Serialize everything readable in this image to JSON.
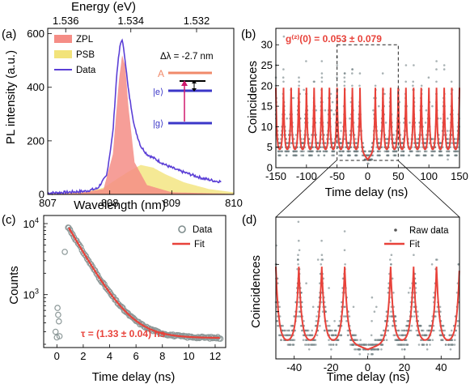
{
  "colors": {
    "fit": "#e8423a",
    "data_line": "#5b3fd6",
    "zpl": "#f58d86",
    "psb": "#f2e37a",
    "raw": "#6f7f82",
    "dot_edge": "#8c9898"
  },
  "chart_data": [
    {
      "id": "a",
      "type": "area",
      "panel_label": "(a)",
      "xlabel": "Wavelength (nm)",
      "ylabel": "PL intensity (a.u.)",
      "top_axis_label": "Energy (eV)",
      "top_ticks": [
        "1.536",
        "1.534",
        "1.532"
      ],
      "top_tick_wavelengths": [
        807.29,
        808.34,
        809.4
      ],
      "xlim": [
        807,
        810
      ],
      "ylim": [
        0,
        620
      ],
      "xticks": [
        807,
        808,
        809,
        810
      ],
      "yticks": [
        0,
        200,
        400,
        600
      ],
      "legend": [
        "ZPL",
        "PSB",
        "Data"
      ],
      "annotation": "Δλ = -2.7 nm",
      "levels": [
        "A",
        "|e⟩",
        "|g⟩"
      ],
      "series": [
        {
          "name": "ZPL",
          "x": [
            807.0,
            807.5,
            807.9,
            808.05,
            808.15,
            808.2,
            808.25,
            808.3,
            808.4,
            808.6,
            809.0,
            810.0
          ],
          "values": [
            2,
            5,
            20,
            150,
            430,
            520,
            480,
            330,
            120,
            35,
            8,
            2
          ]
        },
        {
          "name": "PSB",
          "x": [
            807.0,
            807.6,
            807.9,
            808.1,
            808.3,
            808.5,
            808.7,
            808.9,
            809.2,
            809.6,
            810.0
          ],
          "values": [
            2,
            8,
            25,
            55,
            85,
            110,
            100,
            75,
            45,
            20,
            8
          ]
        },
        {
          "name": "Data",
          "x": [
            807.0,
            807.3,
            807.6,
            807.8,
            807.95,
            808.05,
            808.12,
            808.17,
            808.2,
            808.25,
            808.3,
            808.4,
            808.5,
            808.6,
            808.75,
            808.9,
            809.1,
            809.3,
            809.5,
            809.7,
            809.8
          ],
          "values": [
            5,
            8,
            12,
            22,
            70,
            230,
            470,
            560,
            580,
            500,
            390,
            250,
            180,
            150,
            130,
            110,
            90,
            75,
            60,
            50,
            48
          ]
        }
      ]
    },
    {
      "id": "b",
      "type": "scatter",
      "panel_label": "(b)",
      "xlabel": "Time delay (ns)",
      "ylabel": "Coincidences",
      "annotation": "g⁽²⁾(0) = 0.053 ± 0.079",
      "xlim": [
        -150,
        150
      ],
      "ylim": [
        0,
        34
      ],
      "xticks": [
        -150,
        -100,
        -50,
        0,
        50,
        100,
        150
      ],
      "yticks": [
        0,
        5,
        10,
        15,
        20,
        25,
        30
      ],
      "fit": {
        "period_ns": 12.5,
        "peak": 19.5,
        "baseline": 4,
        "center_dip": 2,
        "dip_halfwidth_ns": 10
      },
      "zoom_window": {
        "x": [
          -50,
          50
        ],
        "y": [
          0,
          30
        ]
      }
    },
    {
      "id": "c",
      "type": "scatter",
      "panel_label": "(c)",
      "xlabel": "Time delay (ns)",
      "ylabel": "Counts",
      "yscale": "log",
      "xlim": [
        -1,
        12.8
      ],
      "ylim": [
        180,
        13000
      ],
      "xticks": [
        0,
        2,
        4,
        6,
        8,
        10,
        12
      ],
      "yticks": [
        "10^3",
        "10^4"
      ],
      "yticks_values": [
        1000,
        10000
      ],
      "legend": [
        "Data",
        "Fit"
      ],
      "annotation": "τ = (1.33 ± 0.04) ns",
      "fit": {
        "x0": 0.9,
        "amplitude": 8500,
        "tau": 1.33,
        "offset": 245
      },
      "early_points": {
        "x": [
          -0.1,
          0.0,
          0.05,
          0.1,
          0.15,
          0.2,
          0.6,
          0.85
        ],
        "values": [
          300,
          250,
          650,
          520,
          420,
          260,
          4000,
          8800
        ]
      }
    },
    {
      "id": "d",
      "type": "scatter",
      "panel_label": "(d)",
      "xlabel": "Time delay (ns)",
      "ylabel": "Coincidences",
      "xlim": [
        -50,
        50
      ],
      "ylim": [
        0,
        30
      ],
      "xticks": [
        -40,
        -20,
        0,
        20,
        40
      ],
      "legend": [
        "Raw data",
        "Fit"
      ],
      "fit": {
        "period_ns": 12.5,
        "peak": 19.5,
        "baseline": 3.5,
        "center_dip": 2,
        "dip_halfwidth_ns": 10
      }
    }
  ]
}
